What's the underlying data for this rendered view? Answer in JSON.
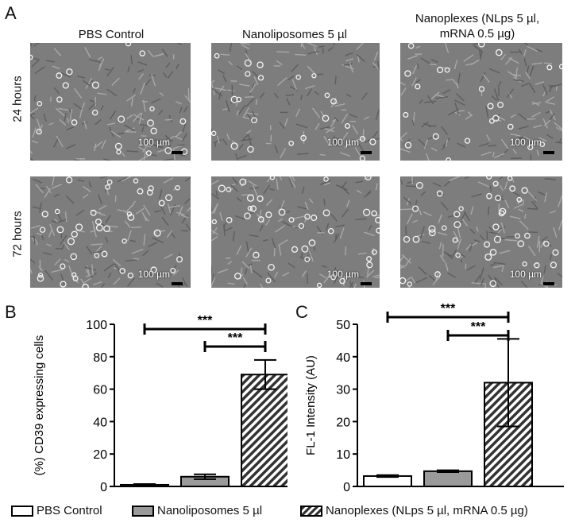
{
  "panels": {
    "a": "A",
    "b": "B",
    "c": "C"
  },
  "columns": [
    "PBS Control",
    "Nanoliposomes 5 µl",
    "Nanoplexes (NLps 5 µl, mRNA 0.5 µg)"
  ],
  "rows": [
    "24 hours",
    "72 hours"
  ],
  "scale_label": "100 µm",
  "colors": {
    "pbs": "#ffffff",
    "nanoliposomes": "#9a9a9a",
    "nanoplexes_hatch": "#333333",
    "axis": "#000000"
  },
  "legend": [
    {
      "label": "PBS Control",
      "style": "white"
    },
    {
      "label": "Nanoliposomes 5 µl",
      "style": "gray"
    },
    {
      "label": "Nanoplexes (NLps 5 µl, mRNA 0.5 µg)",
      "style": "hatched"
    }
  ],
  "chart_data": [
    {
      "type": "bar",
      "panel": "B",
      "ylabel": "(%) CD39 expressing cells",
      "ylim": [
        0,
        100
      ],
      "yticks": [
        0,
        20,
        40,
        60,
        80,
        100
      ],
      "categories": [
        "PBS Control",
        "Nanoliposomes 5 µl",
        "Nanoplexes (NLps 5 µl, mRNA 0.5 µg)"
      ],
      "values": [
        1,
        6,
        69
      ],
      "errors": [
        0.5,
        1.5,
        9
      ],
      "significance": [
        {
          "from": 0,
          "to": 2,
          "label": "***"
        },
        {
          "from": 1,
          "to": 2,
          "label": "***"
        }
      ]
    },
    {
      "type": "bar",
      "panel": "C",
      "ylabel": "FL-1 Intensity (AU)",
      "ylim": [
        0,
        50
      ],
      "yticks": [
        0,
        10,
        20,
        30,
        40,
        50
      ],
      "categories": [
        "PBS Control",
        "Nanoliposomes 5 µl",
        "Nanoplexes (NLps 5 µl, mRNA 0.5 µg)"
      ],
      "values": [
        3.2,
        4.7,
        32
      ],
      "errors": [
        0.3,
        0.3,
        13.5
      ],
      "significance": [
        {
          "from": 0,
          "to": 2,
          "label": "***"
        },
        {
          "from": 1,
          "to": 2,
          "label": "***"
        }
      ]
    }
  ]
}
